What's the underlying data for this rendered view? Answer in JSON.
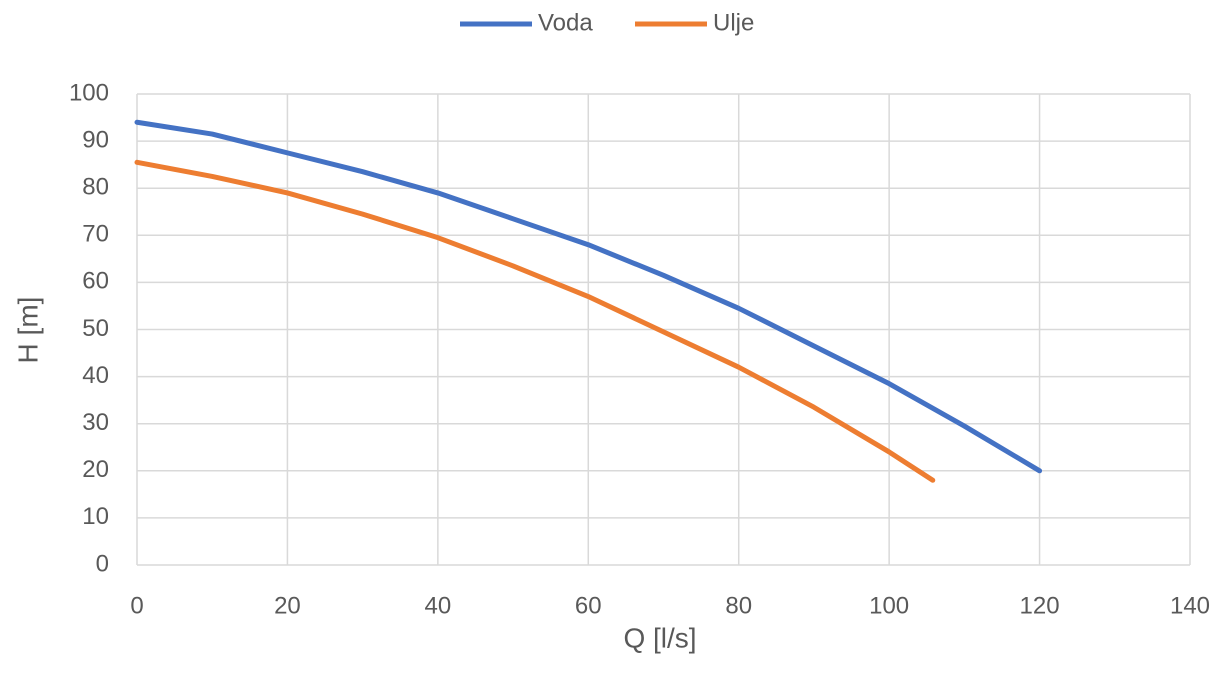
{
  "chart_data": {
    "type": "line",
    "xlabel": "Q [l/s]",
    "ylabel": "H [m]",
    "series": [
      {
        "name": "Voda",
        "color": "#4472c4",
        "x": [
          0,
          10,
          20,
          30,
          40,
          50,
          60,
          70,
          80,
          90,
          100,
          110,
          120
        ],
        "values": [
          94,
          91.5,
          87.5,
          83.5,
          79,
          73.5,
          68,
          61.5,
          54.5,
          46.5,
          38.5,
          29.5,
          20
        ]
      },
      {
        "name": "Ulje",
        "color": "#ed7d31",
        "x": [
          0,
          10,
          20,
          30,
          40,
          50,
          60,
          70,
          80,
          90,
          100,
          105.8
        ],
        "values": [
          85.5,
          82.5,
          79,
          74.5,
          69.5,
          63.5,
          57,
          49.5,
          42,
          33.5,
          24,
          18
        ]
      }
    ],
    "xlim": [
      0,
      140
    ],
    "xticks": [
      0,
      20,
      40,
      60,
      80,
      100,
      120,
      140
    ],
    "ylim": [
      0,
      100
    ],
    "yticks": [
      0,
      10,
      20,
      30,
      40,
      50,
      60,
      70,
      80,
      90,
      100
    ],
    "grid": true,
    "legend": "top"
  }
}
